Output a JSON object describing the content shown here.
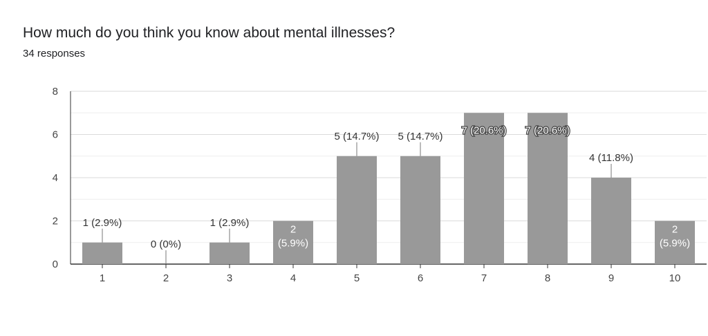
{
  "chart_data": {
    "type": "bar",
    "title": "How much do you think you know about mental illnesses?",
    "subtitle": "34 responses",
    "categories": [
      "1",
      "2",
      "3",
      "4",
      "5",
      "6",
      "7",
      "8",
      "9",
      "10"
    ],
    "values": [
      1,
      0,
      1,
      2,
      5,
      5,
      7,
      7,
      4,
      2
    ],
    "data_labels": [
      "1 (2.9%)",
      "0 (0%)",
      "1 (2.9%)",
      "2 (5.9%)",
      "5 (14.7%)",
      "5 (14.7%)",
      "7 (20.6%)",
      "7 (20.6%)",
      "4 (11.8%)",
      "2 (5.9%)"
    ],
    "inside_labels": [
      false,
      false,
      false,
      true,
      false,
      false,
      true,
      true,
      false,
      true
    ],
    "ylim": [
      0,
      8
    ],
    "yticks": [
      0,
      2,
      4,
      6,
      8
    ],
    "grid": true,
    "bar_color": "#999999"
  }
}
